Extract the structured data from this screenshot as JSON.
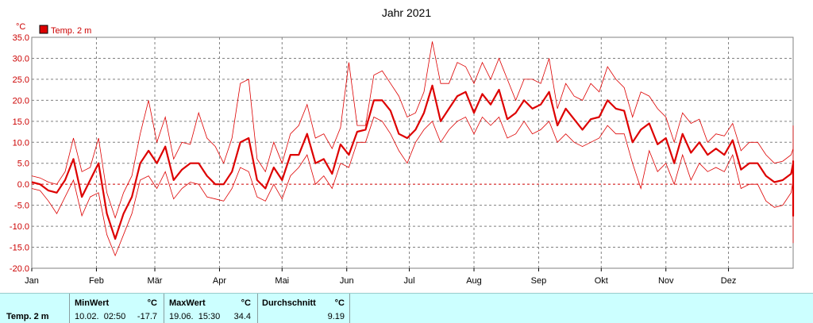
{
  "chart_data": {
    "type": "line",
    "title": "Jahr 2021",
    "ylabel": "°C",
    "ylim": [
      -20,
      35
    ],
    "yticks": [
      "35.0",
      "30.0",
      "25.0",
      "20.0",
      "15.0",
      "10.0",
      "5.0",
      "0.0",
      "-5.0",
      "-10.0",
      "-15.0",
      "-20.0"
    ],
    "months": [
      "Jan",
      "Feb",
      "Mär",
      "Apr",
      "Mai",
      "Jun",
      "Jul",
      "Aug",
      "Sep",
      "Okt",
      "Nov",
      "Dez"
    ],
    "grid": true,
    "legend_position": "top-left",
    "colors": {
      "line": "#dd0000",
      "zero_line": "#cc0000",
      "grid": "#808080"
    },
    "series": [
      {
        "name": "Temp. 2 m",
        "step_days": 4,
        "mean": [
          0.5,
          0.0,
          -1.5,
          -2.0,
          1.0,
          6.0,
          -3.0,
          1.0,
          5.0,
          -7.0,
          -13.0,
          -7.0,
          -3.0,
          5.0,
          8.0,
          5.0,
          9.0,
          1.0,
          3.5,
          5.0,
          5.0,
          2.0,
          0.0,
          0.0,
          3.0,
          10.0,
          11.0,
          1.0,
          -1.0,
          4.0,
          1.0,
          7.0,
          7.0,
          12.0,
          5.0,
          6.0,
          2.5,
          9.5,
          7.0,
          12.5,
          13.0,
          20.0,
          20.0,
          17.5,
          12.0,
          11.0,
          13.0,
          17.0,
          23.5,
          15.0,
          18.0,
          21.0,
          22.0,
          17.0,
          21.5,
          19.0,
          22.5,
          15.5,
          17.0,
          20.0,
          18.0,
          19.0,
          22.0,
          14.0,
          18.0,
          15.5,
          13.0,
          15.5,
          16.0,
          20.0,
          18.0,
          17.5,
          10.0,
          13.0,
          14.5,
          9.5,
          11.0,
          5.0,
          12.0,
          7.5,
          10.0,
          7.0,
          8.5,
          7.0,
          10.5,
          3.5,
          5.0,
          5.0,
          2.0,
          0.5,
          1.0,
          2.5,
          5.0,
          5.5,
          -2.5,
          -1.5,
          -7.5,
          3.0
        ],
        "max": [
          2.0,
          1.5,
          0.5,
          0.0,
          3.0,
          11.0,
          3.0,
          4.0,
          11.0,
          -2.0,
          -8.0,
          -2.0,
          2.0,
          12.0,
          20.0,
          10.0,
          16.0,
          6.0,
          10.0,
          9.5,
          17.0,
          11.0,
          9.0,
          5.0,
          11.0,
          24.0,
          25.0,
          6.0,
          3.0,
          10.0,
          5.0,
          12.0,
          14.0,
          19.0,
          11.0,
          12.0,
          8.5,
          13.5,
          29.0,
          14.0,
          14.0,
          26.0,
          27.0,
          24.0,
          21.0,
          16.0,
          17.0,
          22.0,
          34.0,
          24.0,
          24.0,
          29.0,
          28.0,
          24.0,
          29.0,
          25.0,
          30.0,
          25.0,
          20.0,
          25.0,
          25.0,
          24.0,
          30.0,
          18.0,
          24.0,
          21.0,
          20.0,
          24.0,
          22.0,
          28.0,
          25.0,
          23.0,
          16.0,
          22.0,
          21.0,
          18.0,
          16.0,
          10.0,
          17.0,
          14.5,
          15.5,
          10.0,
          12.0,
          11.5,
          14.5,
          8.0,
          10.0,
          10.0,
          7.0,
          5.0,
          5.5,
          7.0,
          8.5,
          10.0,
          3.0,
          3.0,
          2.5,
          14.0
        ],
        "min": [
          -1.0,
          -1.5,
          -4.0,
          -7.0,
          -3.0,
          1.0,
          -7.5,
          -3.0,
          -2.0,
          -12.0,
          -17.0,
          -12.0,
          -7.0,
          1.0,
          2.0,
          -1.0,
          3.0,
          -3.5,
          -1.0,
          0.5,
          0.0,
          -3.0,
          -3.5,
          -4.0,
          -1.0,
          4.0,
          3.0,
          -3.0,
          -4.0,
          0.0,
          -3.5,
          2.0,
          4.0,
          7.0,
          0.0,
          2.0,
          -1.0,
          5.0,
          4.0,
          10.0,
          10.0,
          16.0,
          15.0,
          12.0,
          8.0,
          5.0,
          10.0,
          13.0,
          15.0,
          10.0,
          13.0,
          15.0,
          16.0,
          12.0,
          16.0,
          14.0,
          16.0,
          11.0,
          12.0,
          15.0,
          12.0,
          13.0,
          15.0,
          10.0,
          12.0,
          10.0,
          9.0,
          10.0,
          11.0,
          14.0,
          12.0,
          12.0,
          5.0,
          -1.0,
          8.0,
          3.0,
          5.0,
          0.0,
          7.0,
          1.0,
          5.0,
          3.0,
          4.0,
          3.0,
          7.0,
          -1.0,
          0.0,
          0.0,
          -4.0,
          -5.5,
          -5.0,
          -2.0,
          1.0,
          0.5,
          -8.0,
          -11.0,
          -14.0,
          -2.0
        ]
      }
    ]
  },
  "footer": {
    "series_name": "Temp. 2 m",
    "min": {
      "label": "MinWert",
      "unit": "°C",
      "datetime": "10.02.  02:50",
      "value": "-17.7"
    },
    "max": {
      "label": "MaxWert",
      "unit": "°C",
      "datetime": "19.06.  15:30",
      "value": "34.4"
    },
    "avg": {
      "label": "Durchschnitt",
      "unit": "°C",
      "value": "9.19"
    }
  }
}
